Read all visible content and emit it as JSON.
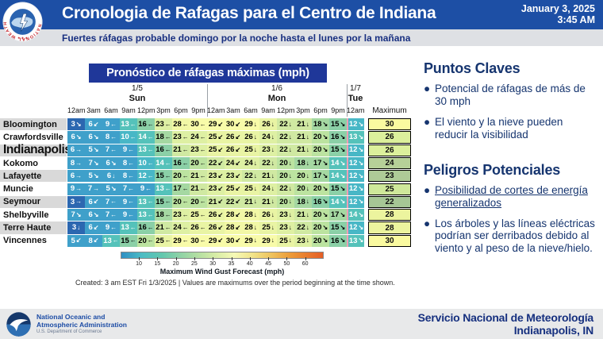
{
  "header": {
    "title": "Cronologia de Rafagas para el Centro de Indiana",
    "date": "January 3, 2025",
    "time": "3:45 AM",
    "subtitle": "Fuertes ráfagas probable domingo por la noche hasta el lunes por la mañana"
  },
  "table": {
    "title": "Pronóstico de ráfagas máximas (mph)",
    "max_header": "Maximum"
  },
  "chart_data": {
    "type": "heatmap",
    "title": "Pronóstico de ráfagas máximas (mph)",
    "unit": "mph",
    "day_groups": [
      {
        "date": "1/5",
        "day": "Sun",
        "span": 8
      },
      {
        "date": "1/6",
        "day": "Mon",
        "span": 8
      },
      {
        "date": "1/7",
        "day": "Tue",
        "span": 1
      }
    ],
    "x_labels": [
      "12am",
      "3am",
      "6am",
      "9am",
      "12pm",
      "3pm",
      "6pm",
      "9pm",
      "12am",
      "3am",
      "6am",
      "9am",
      "12pm",
      "3pm",
      "6pm",
      "9pm",
      "12am"
    ],
    "rows": [
      {
        "city": "Bloomington",
        "values": [
          3,
          6,
          9,
          13,
          16,
          23,
          28,
          30,
          29,
          30,
          29,
          26,
          22,
          21,
          18,
          15,
          12
        ],
        "dirs": [
          "↘",
          "↙",
          "←",
          "←",
          "←",
          "←",
          "←",
          "←",
          "↙",
          "↙",
          "↓",
          "↓",
          "↓",
          "↓",
          "↘",
          "↘",
          "↘"
        ],
        "max": 30
      },
      {
        "city": "Crawfordsville",
        "values": [
          6,
          6,
          8,
          10,
          14,
          18,
          23,
          24,
          25,
          26,
          26,
          24,
          22,
          21,
          20,
          16,
          13
        ],
        "dirs": [
          "↘",
          "↘",
          "←",
          "←",
          "←",
          "←",
          "←",
          "←",
          "↙",
          "↙",
          "↓",
          "↓",
          "↓",
          "↓",
          "↘",
          "↘",
          "↘"
        ],
        "max": 26
      },
      {
        "city": "Indianapolis",
        "values": [
          6,
          5,
          7,
          9,
          13,
          16,
          21,
          23,
          25,
          26,
          25,
          23,
          22,
          21,
          20,
          15,
          12
        ],
        "dirs": [
          "→",
          "↘",
          "←",
          "←",
          "←",
          "←",
          "←",
          "←",
          "↙",
          "↙",
          "↓",
          "↓",
          "↓",
          "↓",
          "↘",
          "↘",
          "↘"
        ],
        "max": 26
      },
      {
        "city": "Kokomo",
        "values": [
          8,
          7,
          6,
          8,
          10,
          14,
          16,
          20,
          22,
          24,
          24,
          22,
          20,
          18,
          17,
          14,
          12
        ],
        "dirs": [
          "→",
          "↘",
          "↘",
          "←",
          "←",
          "←",
          "←",
          "←",
          "↙",
          "↙",
          "↓",
          "↓",
          "↓",
          "↓",
          "↘",
          "↘",
          "↘"
        ],
        "max": 24
      },
      {
        "city": "Lafayette",
        "values": [
          6,
          5,
          6,
          8,
          12,
          15,
          20,
          21,
          23,
          23,
          22,
          21,
          20,
          20,
          17,
          14,
          12
        ],
        "dirs": [
          "→",
          "↘",
          "↓",
          "←",
          "←",
          "←",
          "←",
          "←",
          "↙",
          "↙",
          "↓",
          "↓",
          "↓",
          "↓",
          "↘",
          "↘",
          "↘"
        ],
        "max": 23
      },
      {
        "city": "Muncie",
        "values": [
          9,
          7,
          5,
          7,
          9,
          13,
          17,
          21,
          23,
          25,
          25,
          24,
          22,
          20,
          20,
          15,
          12
        ],
        "dirs": [
          "→",
          "→",
          "↘",
          "←",
          "←",
          "←",
          "←",
          "←",
          "↙",
          "↙",
          "↓",
          "↓",
          "↓",
          "↓",
          "↘",
          "↘",
          "↘"
        ],
        "max": 25
      },
      {
        "city": "Seymour",
        "values": [
          3,
          6,
          7,
          9,
          13,
          15,
          20,
          20,
          21,
          22,
          21,
          21,
          20,
          18,
          16,
          14,
          12
        ],
        "dirs": [
          "→",
          "↙",
          "←",
          "←",
          "←",
          "←",
          "←",
          "←",
          "↙",
          "↙",
          "↓",
          "↓",
          "↓",
          "↓",
          "↘",
          "↘",
          "↘"
        ],
        "max": 22
      },
      {
        "city": "Shelbyville",
        "values": [
          7,
          6,
          7,
          9,
          13,
          18,
          23,
          25,
          26,
          28,
          28,
          26,
          23,
          21,
          20,
          17,
          14
        ],
        "dirs": [
          "↘",
          "↘",
          "←",
          "←",
          "←",
          "←",
          "←",
          "←",
          "↙",
          "↙",
          "↓",
          "↓",
          "↓",
          "↓",
          "↘",
          "↘",
          "↘"
        ],
        "max": 28
      },
      {
        "city": "Terre Haute",
        "values": [
          3,
          6,
          9,
          13,
          16,
          21,
          24,
          26,
          26,
          28,
          28,
          25,
          23,
          22,
          20,
          15,
          12
        ],
        "dirs": [
          "↓",
          "↙",
          "←",
          "←",
          "←",
          "←",
          "←",
          "←",
          "↙",
          "↙",
          "↓",
          "↓",
          "↓",
          "↓",
          "↘",
          "↘",
          "↘"
        ],
        "max": 28
      },
      {
        "city": "Vincennes",
        "values": [
          5,
          8,
          13,
          15,
          20,
          25,
          29,
          30,
          29,
          30,
          29,
          29,
          25,
          23,
          20,
          16,
          13
        ],
        "dirs": [
          "↙",
          "↙",
          "←",
          "←",
          "←",
          "←",
          "←",
          "←",
          "↙",
          "↙",
          "↓",
          "↓",
          "↓",
          "↓",
          "↘",
          "↘",
          "↘"
        ],
        "max": 30
      }
    ],
    "legend": {
      "label": "Maximum Wind Gust Forecast (mph)",
      "ticks": [
        10,
        15,
        20,
        25,
        30,
        35,
        40,
        45,
        50,
        60
      ],
      "gradient_colors": [
        "#2f8fc4",
        "#4cbcc4",
        "#62c7ae",
        "#8ed2a6",
        "#b4dfa2",
        "#d8eda6",
        "#f6f9b6",
        "#f1e48a",
        "#eec45f",
        "#ec9a38",
        "#e55e26"
      ]
    }
  },
  "notes": {
    "created": "Created: 3 am EST Fri 1/3/2025  |  Values are maximums over the period beginning at the time shown."
  },
  "right_panel": {
    "sections": [
      {
        "heading": "Puntos Claves",
        "bullets": [
          {
            "text": "Potencial de ráfagas de más de 30 mph",
            "underline": false
          },
          {
            "text": "El viento y la nieve pueden reducir la visibilidad",
            "underline": false
          }
        ]
      },
      {
        "heading": "Peligros Potenciales",
        "bullets": [
          {
            "text": "Posibilidad de cortes de energía generalizados",
            "underline": true
          },
          {
            "text": "Los árboles y las líneas eléctricas podrían ser derribados debido al viento y al peso de la nieve/hielo.",
            "underline": false
          }
        ]
      }
    ]
  },
  "footer": {
    "noaa_line1": "National Oceanic and",
    "noaa_line2": "Atmospheric Administration",
    "noaa_line3": "U.S. Department of Commerce",
    "org_line1": "Servicio Nacional de Meteorología",
    "org_line2": "Indianapolis, IN"
  },
  "colors": {
    "header_blue": "#1d4fa5",
    "subtitle_bg": "#dee0e4",
    "table_title_bg": "#1f3799",
    "panel_text": "#16356f",
    "footer_bg": "#e8e9ea",
    "label_shade": "#d9d9d9",
    "tue_separator_pink": "#ef9db6",
    "value_stops": [
      [
        29,
        "#f8fba9",
        "#000"
      ],
      [
        27,
        "#f2f8a6",
        "#000"
      ],
      [
        25,
        "#e9f4a4",
        "#000"
      ],
      [
        23,
        "#def0a3",
        "#000"
      ],
      [
        21,
        "#d0e9a2",
        "#000"
      ],
      [
        19,
        "#bce3a0",
        "#000"
      ],
      [
        17,
        "#a5d8a2",
        "#000"
      ],
      [
        15,
        "#8bd0a7",
        "#000"
      ],
      [
        13,
        "#55c2ba",
        "#fff"
      ],
      [
        10,
        "#48b7c6",
        "#fff"
      ],
      [
        5,
        "#3fa0ca",
        "#fff"
      ],
      [
        0,
        "#2c67b0",
        "#fff"
      ]
    ],
    "max_colors": {
      "30": "#fafaa0",
      "28": "#ecf49e",
      "26": "#dcf09c",
      "25": "#cfe89a",
      "24": "#b6d098",
      "23": "#aecb97",
      "22": "#a6c695"
    }
  }
}
